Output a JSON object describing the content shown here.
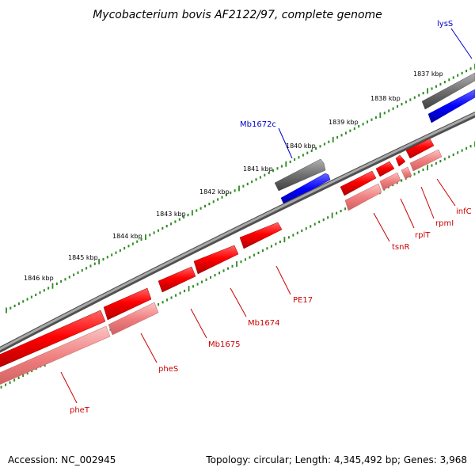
{
  "title": "Mycobacterium bovis AF2122/97, complete genome",
  "footer": {
    "accession": "Accession: NC_002945",
    "summary": "Topology: circular; Length: 4,345,492 bp; Genes: 3,968"
  },
  "colors": {
    "backbone": "#808080",
    "forward_gene": "#ff0000",
    "reverse_gene": "#0000ff",
    "cds_tint": "#f08080",
    "other_feature": "#707070",
    "tick": "#2e8b22",
    "label_forward": "#cc0000",
    "label_reverse": "#0000cc"
  },
  "kbp_labels": [
    "1837 kbp",
    "1838 kbp",
    "1839 kbp",
    "1840 kbp",
    "1841 kbp",
    "1842 kbp",
    "1843 kbp",
    "1844 kbp",
    "1845 kbp",
    "1846 kbp"
  ],
  "gene_labels": [
    {
      "text": "lysS",
      "strand": "reverse"
    },
    {
      "text": "Mb1672c",
      "strand": "reverse"
    },
    {
      "text": "infC",
      "strand": "forward"
    },
    {
      "text": "rpmI",
      "strand": "forward"
    },
    {
      "text": "rplT",
      "strand": "forward"
    },
    {
      "text": "tsnR",
      "strand": "forward"
    },
    {
      "text": "PE17",
      "strand": "forward"
    },
    {
      "text": "Mb1674",
      "strand": "forward"
    },
    {
      "text": "Mb1675",
      "strand": "forward"
    },
    {
      "text": "pheS",
      "strand": "forward"
    },
    {
      "text": "pheT",
      "strand": "forward"
    }
  ]
}
